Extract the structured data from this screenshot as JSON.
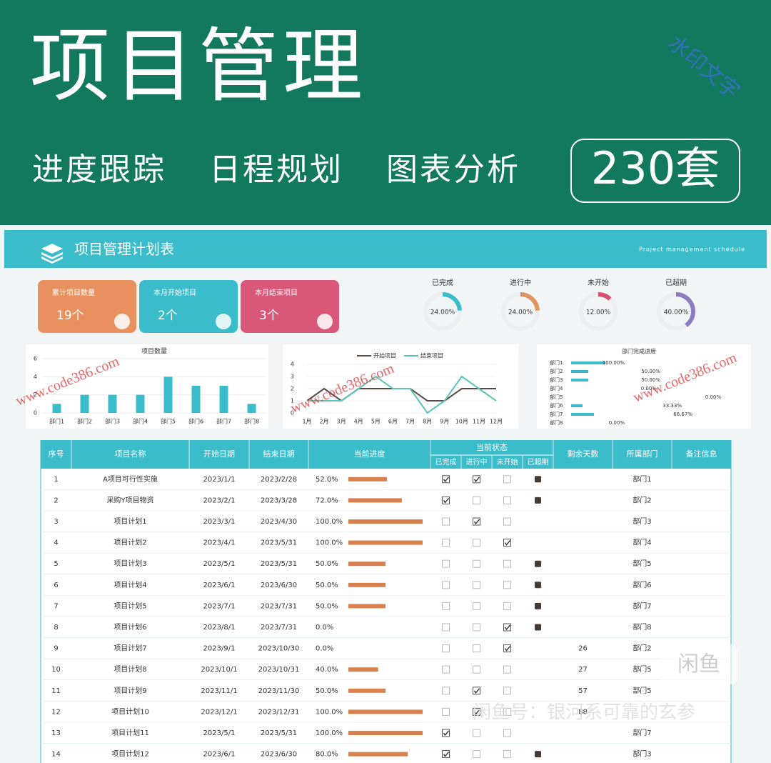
{
  "banner": {
    "title": "项目管理",
    "tags": [
      "进度跟踪",
      "日程规划",
      "图表分析"
    ],
    "badge": "230套",
    "watermark": "水印文字"
  },
  "sheet": {
    "title": "项目管理计划表",
    "subtitle": "Project management schedule"
  },
  "cards": [
    {
      "label": "累计项目数量",
      "value": "19个"
    },
    {
      "label": "本月开始项目",
      "value": "2个"
    },
    {
      "label": "本月结束项目",
      "value": "3个"
    }
  ],
  "rings": [
    {
      "label": "已完成",
      "value": 24,
      "value_label": "24.00%",
      "color": "#3bbccb"
    },
    {
      "label": "进行中",
      "value": 24,
      "value_label": "24.00%",
      "color": "#e0955e"
    },
    {
      "label": "未开始",
      "value": 12,
      "value_label": "12.00%",
      "color": "#d9506e"
    },
    {
      "label": "已超期",
      "value": 40,
      "value_label": "40.00%",
      "color": "#8e7cc3"
    }
  ],
  "chart_data": [
    {
      "type": "bar",
      "title": "项目数量",
      "categories": [
        "部门1",
        "部门2",
        "部门3",
        "部门4",
        "部门5",
        "部门6",
        "部门7",
        "部门8"
      ],
      "values": [
        1,
        2,
        2,
        2,
        4,
        3,
        3,
        1
      ],
      "color": "#3bbccb",
      "ylim": [
        0,
        6
      ],
      "yticks": [
        0,
        2,
        4,
        6
      ]
    },
    {
      "type": "line",
      "x": [
        "1月",
        "2月",
        "3月",
        "4月",
        "5月",
        "6月",
        "7月",
        "8月",
        "9月",
        "10月",
        "11月",
        "12月"
      ],
      "series": [
        {
          "name": "开始项目",
          "color": "#5a4a45",
          "values": [
            1,
            2,
            1,
            2,
            2,
            2,
            2,
            1,
            1,
            2,
            2,
            2
          ]
        },
        {
          "name": "结束项目",
          "color": "#5cc3b8",
          "values": [
            1,
            1,
            1,
            2,
            3,
            2,
            2,
            0,
            1,
            3,
            2,
            1
          ]
        }
      ],
      "ylim": [
        0,
        4
      ],
      "yticks": [
        0,
        1,
        2,
        3,
        4
      ]
    },
    {
      "type": "hbar",
      "title": "部门完成进度",
      "categories": [
        "部门1",
        "部门2",
        "部门3",
        "部门4",
        "部门5",
        "部门6",
        "部门7",
        "部门8"
      ],
      "values": [
        100,
        50,
        50,
        0,
        0,
        33.33,
        66.67,
        0
      ],
      "value_labels": [
        "100.00%",
        "50.00%",
        "50.00%",
        "0.00%",
        "0.00%",
        "33.33%",
        "66.67%",
        "0.00%"
      ],
      "color": "#3bbccb",
      "xlim": [
        0,
        100
      ]
    }
  ],
  "table": {
    "headers": [
      "序号",
      "项目名称",
      "开始日期",
      "结束日期",
      "当前进度",
      "剩余天数",
      "所属部门",
      "备注信息"
    ],
    "status_header": "当前状态",
    "status_subheaders": [
      "已完成",
      "进行中",
      "未开始",
      "已超期"
    ],
    "rows": [
      {
        "no": 1,
        "name": "A项目可行性实施",
        "start": "2023/1/1",
        "end": "2023/2/28",
        "progress": 52,
        "progress_label": "52.0%",
        "status": [
          true,
          true,
          false,
          true
        ],
        "remaining": null,
        "dept": "部门1"
      },
      {
        "no": 2,
        "name": "采购Y项目物资",
        "start": "2023/2/1",
        "end": "2023/3/28",
        "progress": 72,
        "progress_label": "72.0%",
        "status": [
          true,
          false,
          false,
          true
        ],
        "remaining": null,
        "dept": "部门2"
      },
      {
        "no": 3,
        "name": "项目计划1",
        "start": "2023/3/1",
        "end": "2023/4/30",
        "progress": 100,
        "progress_label": "100.0%",
        "status": [
          false,
          true,
          false,
          null
        ],
        "remaining": null,
        "dept": "部门3"
      },
      {
        "no": 4,
        "name": "项目计划2",
        "start": "2023/4/1",
        "end": "2023/5/31",
        "progress": 100,
        "progress_label": "100.0%",
        "status": [
          false,
          false,
          true,
          null
        ],
        "remaining": null,
        "dept": "部门4"
      },
      {
        "no": 5,
        "name": "项目计划3",
        "start": "2023/5/1",
        "end": "2023/5/31",
        "progress": 50,
        "progress_label": "50.0%",
        "status": [
          false,
          false,
          false,
          true
        ],
        "remaining": null,
        "dept": "部门5"
      },
      {
        "no": 6,
        "name": "项目计划4",
        "start": "2023/6/1",
        "end": "2023/6/30",
        "progress": 50,
        "progress_label": "50.0%",
        "status": [
          false,
          false,
          false,
          true
        ],
        "remaining": null,
        "dept": "部门6"
      },
      {
        "no": 7,
        "name": "项目计划5",
        "start": "2023/7/1",
        "end": "2023/7/31",
        "progress": 50,
        "progress_label": "50.0%",
        "status": [
          false,
          false,
          false,
          true
        ],
        "remaining": null,
        "dept": "部门7"
      },
      {
        "no": 8,
        "name": "项目计划6",
        "start": "2023/8/1",
        "end": "2023/7/31",
        "progress": 0,
        "progress_label": "0.0%",
        "status": [
          false,
          false,
          true,
          true
        ],
        "remaining": null,
        "dept": "部门8"
      },
      {
        "no": 9,
        "name": "项目计划7",
        "start": "2023/9/1",
        "end": "2023/10/30",
        "progress": 0,
        "progress_label": "0.0%",
        "status": [
          false,
          false,
          true,
          null
        ],
        "remaining": 26,
        "dept": "部门2"
      },
      {
        "no": 10,
        "name": "项目计划8",
        "start": "2023/10/1",
        "end": "2023/10/31",
        "progress": 40,
        "progress_label": "40.0%",
        "status": [
          false,
          false,
          false,
          null
        ],
        "remaining": 27,
        "dept": "部门5"
      },
      {
        "no": 11,
        "name": "项目计划9",
        "start": "2023/11/1",
        "end": "2023/11/30",
        "progress": 50,
        "progress_label": "50.0%",
        "status": [
          false,
          true,
          false,
          null
        ],
        "remaining": 57,
        "dept": "部门5"
      },
      {
        "no": 12,
        "name": "项目计划10",
        "start": "2023/12/1",
        "end": "2023/12/31",
        "progress": 100,
        "progress_label": "100.0%",
        "status": [
          false,
          true,
          false,
          null
        ],
        "remaining": 88,
        "dept": null
      },
      {
        "no": 13,
        "name": "项目计划11",
        "start": "2023/5/1",
        "end": "2023/5/31",
        "progress": 100,
        "progress_label": "100.0%",
        "status": [
          true,
          false,
          false,
          null
        ],
        "remaining": null,
        "dept": "部门7"
      },
      {
        "no": 14,
        "name": "项目计划12",
        "start": "2023/6/1",
        "end": "2023/6/30",
        "progress": 80,
        "progress_label": "80.0%",
        "status": [
          true,
          false,
          false,
          true
        ],
        "remaining": null,
        "dept": "部门3"
      }
    ]
  },
  "watermarks": {
    "site": "www.code386.com",
    "seller": "闲鱼号：银河系可靠的玄参",
    "logo": "闲鱼"
  }
}
